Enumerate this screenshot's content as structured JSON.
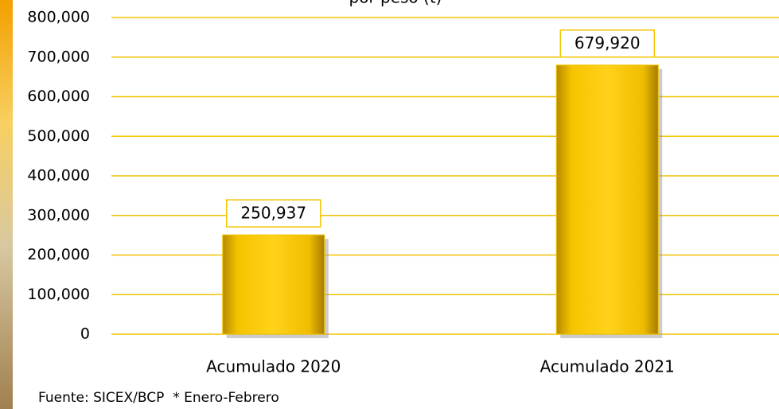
{
  "chart_data": {
    "type": "bar",
    "title": "por peso (t)",
    "categories": [
      "Acumulado 2020",
      "Acumulado 2021"
    ],
    "values": [
      250937,
      679920
    ],
    "value_labels": [
      "250,937",
      "679,920"
    ],
    "color": "#f5c400",
    "ylim": [
      0,
      800000
    ],
    "yticks": [
      0,
      {
        "value": 100000,
        "label": "100,000"
      },
      {
        "value": 200000,
        "label": "200,000"
      },
      {
        "value": 300000,
        "label": "300,000"
      },
      {
        "value": 400000,
        "label": "400,000"
      },
      {
        "value": 500000,
        "label": "500,000"
      },
      {
        "value": 600000,
        "label": "600,000"
      },
      {
        "value": 700000,
        "label": "700,000"
      },
      {
        "value": 800000,
        "label": "800,000"
      }
    ],
    "grid": true,
    "source": "Fuente: SICEX/BCP  * Enero-Febrero"
  }
}
